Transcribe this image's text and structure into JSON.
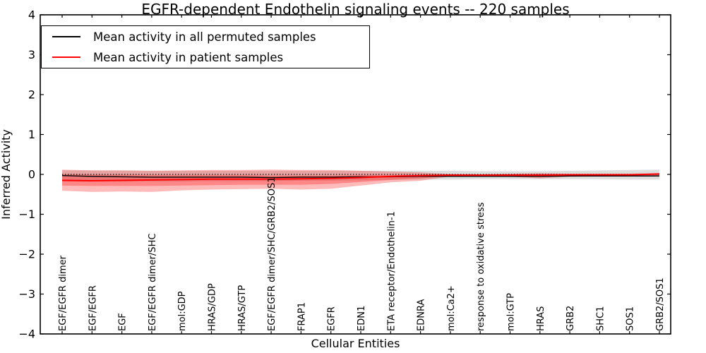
{
  "chart_data": {
    "type": "line",
    "title": "EGFR-dependent Endothelin signaling events -- 220 samples",
    "xlabel": "Cellular Entities",
    "ylabel": "Inferred Activity",
    "ylim": [
      -4,
      4
    ],
    "yticks": [
      4,
      3,
      2,
      1,
      0,
      -1,
      -2,
      -3,
      -4
    ],
    "grid": false,
    "background": "#ffffff",
    "zero_reference_line": {
      "y": 0,
      "style": "dotted",
      "color": "#000000"
    },
    "categories": [
      "EGF/EGFR dimer",
      "EGF/EGFR",
      "EGF",
      "EGF/EGFR dimer/SHC",
      "mol:GDP",
      "HRAS/GDP",
      "HRAS/GTP",
      "EGF/EGFR dimer/SHC/GRB2/SOS1",
      "FRAP1",
      "EGFR",
      "EDN1",
      "ETA receptor/Endothelin-1",
      "EDNRA",
      "mol:Ca2+",
      "response to oxidative stress",
      "mol:GTP",
      "HRAS",
      "GRB2",
      "SHC1",
      "SOS1",
      "GRB2/SOS1"
    ],
    "series": [
      {
        "name": "Mean activity in all permuted samples",
        "color": "#000000",
        "linewidth": 1.4,
        "values": [
          -0.03,
          -0.05,
          -0.06,
          -0.07,
          -0.07,
          -0.07,
          -0.07,
          -0.08,
          -0.07,
          -0.07,
          -0.06,
          -0.06,
          -0.05,
          -0.05,
          -0.05,
          -0.05,
          -0.05,
          -0.04,
          -0.04,
          -0.04,
          -0.04
        ]
      },
      {
        "name": "Mean activity in patient samples",
        "color": "#ff0000",
        "linewidth": 2,
        "values": [
          -0.15,
          -0.16,
          -0.15,
          -0.14,
          -0.13,
          -0.12,
          -0.12,
          -0.12,
          -0.11,
          -0.1,
          -0.08,
          -0.05,
          -0.03,
          -0.02,
          -0.02,
          -0.02,
          -0.02,
          -0.01,
          -0.01,
          -0.01,
          0.01
        ]
      }
    ],
    "bands": [
      {
        "name": "permuted-samples-band",
        "color": "#000000",
        "opacity": 0.13,
        "top": [
          0.1,
          0.1,
          0.1,
          0.09,
          0.09,
          0.09,
          0.09,
          0.09,
          0.09,
          0.09,
          0.09,
          0.09,
          0.09,
          0.09,
          0.08,
          0.08,
          0.08,
          0.09,
          0.1,
          0.11,
          0.12
        ],
        "bottom": [
          -0.17,
          -0.18,
          -0.18,
          -0.18,
          -0.18,
          -0.17,
          -0.17,
          -0.17,
          -0.16,
          -0.16,
          -0.15,
          -0.14,
          -0.13,
          -0.13,
          -0.12,
          -0.12,
          -0.12,
          -0.12,
          -0.12,
          -0.13,
          -0.13
        ]
      },
      {
        "name": "patient-samples-band-outer",
        "color": "#ff0000",
        "opacity": 0.27,
        "top": [
          0.12,
          0.1,
          0.1,
          0.09,
          0.1,
          0.11,
          0.11,
          0.12,
          0.11,
          0.11,
          0.09,
          0.07,
          0.05,
          0.01,
          0.0,
          0.02,
          0.03,
          0.02,
          0.02,
          0.02,
          0.03
        ],
        "bottom": [
          -0.41,
          -0.44,
          -0.43,
          -0.44,
          -0.4,
          -0.38,
          -0.37,
          -0.36,
          -0.38,
          -0.36,
          -0.28,
          -0.2,
          -0.16,
          -0.05,
          -0.03,
          -0.06,
          -0.1,
          -0.06,
          -0.05,
          -0.05,
          -0.05
        ]
      },
      {
        "name": "patient-samples-band-inner",
        "color": "#ff0000",
        "opacity": 0.27,
        "top": [
          0.0,
          -0.01,
          -0.01,
          -0.02,
          -0.02,
          -0.02,
          -0.02,
          -0.03,
          -0.03,
          -0.03,
          -0.02,
          -0.02,
          -0.01,
          -0.01,
          -0.01,
          0.0,
          0.01,
          0.0,
          0.0,
          0.0,
          0.01
        ],
        "bottom": [
          -0.28,
          -0.29,
          -0.29,
          -0.29,
          -0.28,
          -0.27,
          -0.26,
          -0.26,
          -0.26,
          -0.24,
          -0.19,
          -0.14,
          -0.1,
          -0.04,
          -0.02,
          -0.04,
          -0.06,
          -0.04,
          -0.03,
          -0.03,
          -0.02
        ]
      }
    ],
    "legend": {
      "position": "upper-left",
      "entries": [
        {
          "label": "Mean activity in all permuted samples",
          "color": "#000000"
        },
        {
          "label": "Mean activity in patient samples",
          "color": "#ff0000"
        }
      ]
    }
  }
}
